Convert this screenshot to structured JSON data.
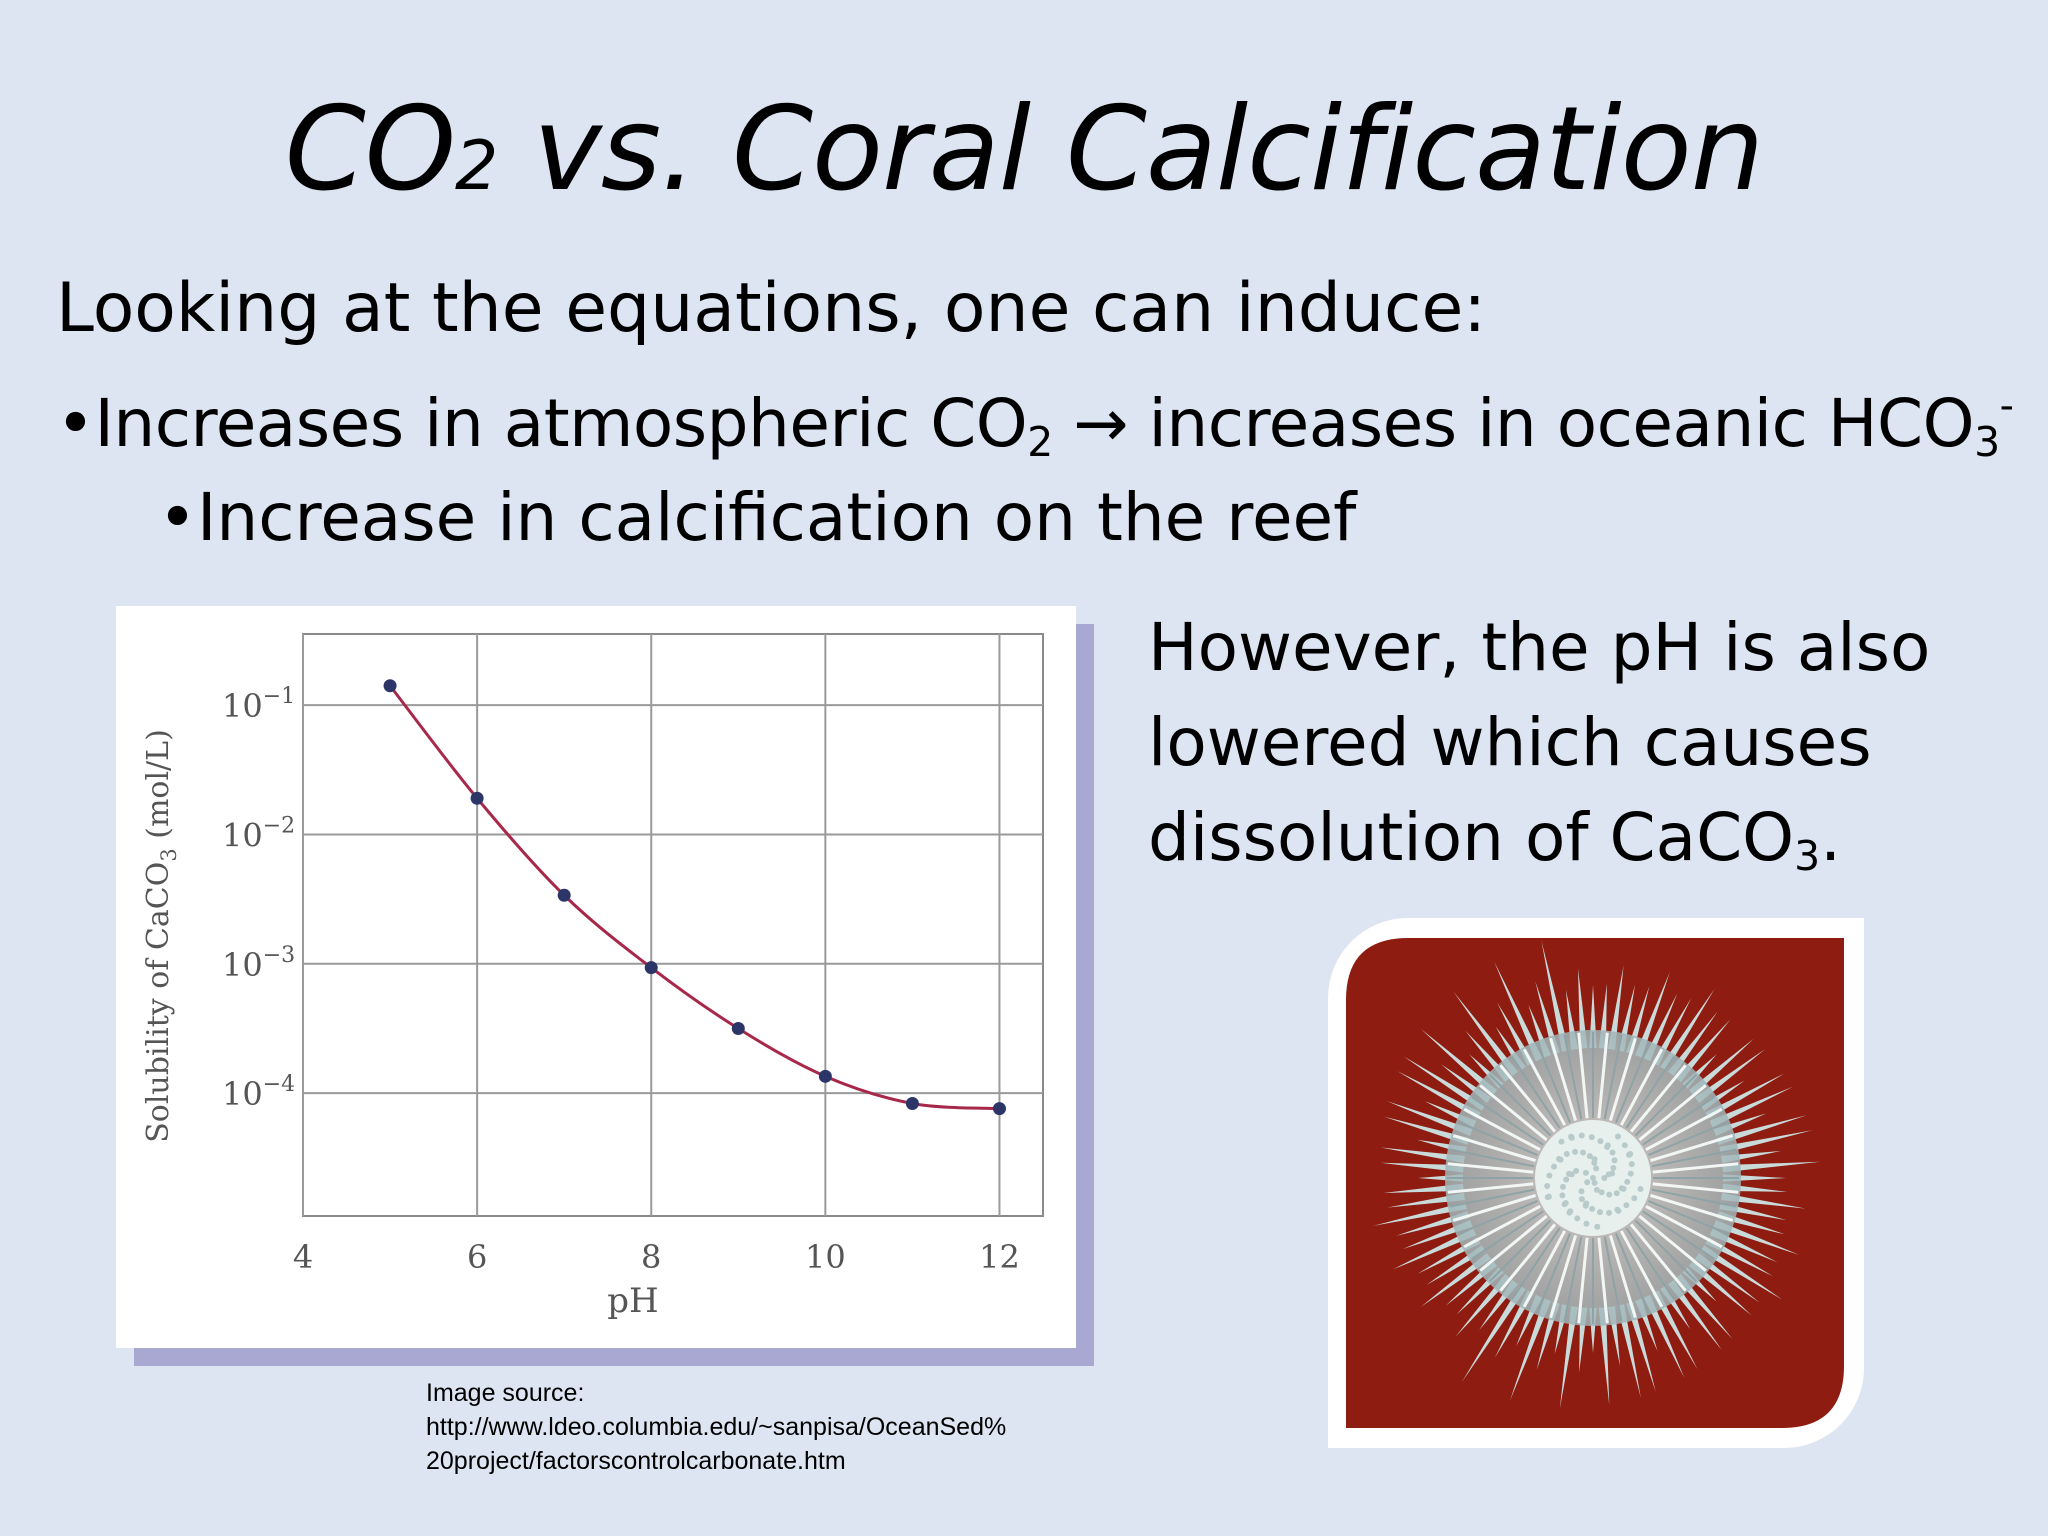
{
  "title": {
    "prefix": "CO",
    "subscript": "2",
    "rest": " vs. Coral Calcification"
  },
  "intro": "Looking at the equations, one can induce:",
  "bullet1": {
    "marker": "•",
    "part1": "Increases in atmospheric CO",
    "sub1": "2",
    "arrow": " → ",
    "part2": "increases in oceanic HCO",
    "sub2": "3",
    "sup2": "-"
  },
  "bullet2": {
    "marker": "•",
    "text": "Increase in calcification on the reef"
  },
  "side_text": {
    "main": "However, the pH is also lowered which causes dissolution of CaCO",
    "sub": "3",
    "end": "."
  },
  "source_note": {
    "line1": "Image source:",
    "line2": "http://www.ldeo.columbia.edu/~sanpisa/OceanSed%",
    "line3": "20project/factorscontrolcarbonate.htm"
  },
  "chart_data": {
    "type": "line",
    "xlabel": "pH",
    "ylabel": "Solubility of CaCO3 (mol/L)",
    "ylabel_parts": {
      "main": "Solubility of CaCO",
      "sub": "3",
      "end": " (mol/L)"
    },
    "log_y": true,
    "xlim": [
      4,
      12.5
    ],
    "ylim_exponent": [
      -4.95,
      -0.45
    ],
    "x_ticks": [
      "4",
      "6",
      "8",
      "10",
      "12"
    ],
    "x_tick_values": [
      4,
      6,
      8,
      10,
      12
    ],
    "y_ticks": [
      {
        "base": "10",
        "exp": "−1",
        "value": -1
      },
      {
        "base": "10",
        "exp": "−2",
        "value": -2
      },
      {
        "base": "10",
        "exp": "−3",
        "value": -3
      },
      {
        "base": "10",
        "exp": "−4",
        "value": -4
      }
    ],
    "grid": true,
    "series": [
      {
        "x": [
          5,
          6,
          7,
          8,
          9,
          10,
          11,
          12
        ],
        "log10_y": [
          -0.85,
          -1.72,
          -2.47,
          -3.03,
          -3.5,
          -3.87,
          -4.08,
          -4.12
        ]
      }
    ],
    "line_color": "#a8284a",
    "point_color": "#2b3568"
  },
  "coral_photo": {
    "background": "#8e1c10",
    "skeleton": "#c9dada"
  }
}
